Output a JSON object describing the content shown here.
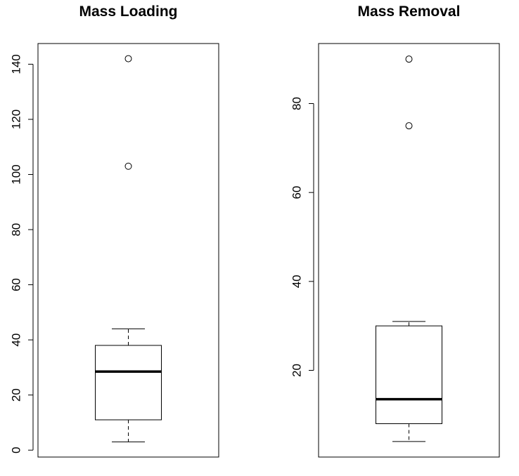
{
  "chart_data": [
    {
      "type": "boxplot",
      "title": "Mass Loading",
      "xlabel": "",
      "ylabel": "",
      "ylim": [
        -2.5,
        147.5
      ],
      "yticks": [
        0,
        20,
        40,
        60,
        80,
        100,
        120,
        140
      ],
      "box": {
        "whisker_low": 3,
        "q1": 11,
        "median": 28.5,
        "q3": 38,
        "whisker_high": 44,
        "outliers": [
          103,
          142
        ]
      }
    },
    {
      "type": "boxplot",
      "title": "Mass Removal",
      "xlabel": "",
      "ylabel": "",
      "ylim": [
        0.5,
        93.5
      ],
      "yticks": [
        20,
        40,
        60,
        80
      ],
      "box": {
        "whisker_low": 4,
        "q1": 8,
        "median": 13.5,
        "q3": 30,
        "whisker_high": 31,
        "outliers": [
          75,
          90
        ]
      }
    }
  ]
}
